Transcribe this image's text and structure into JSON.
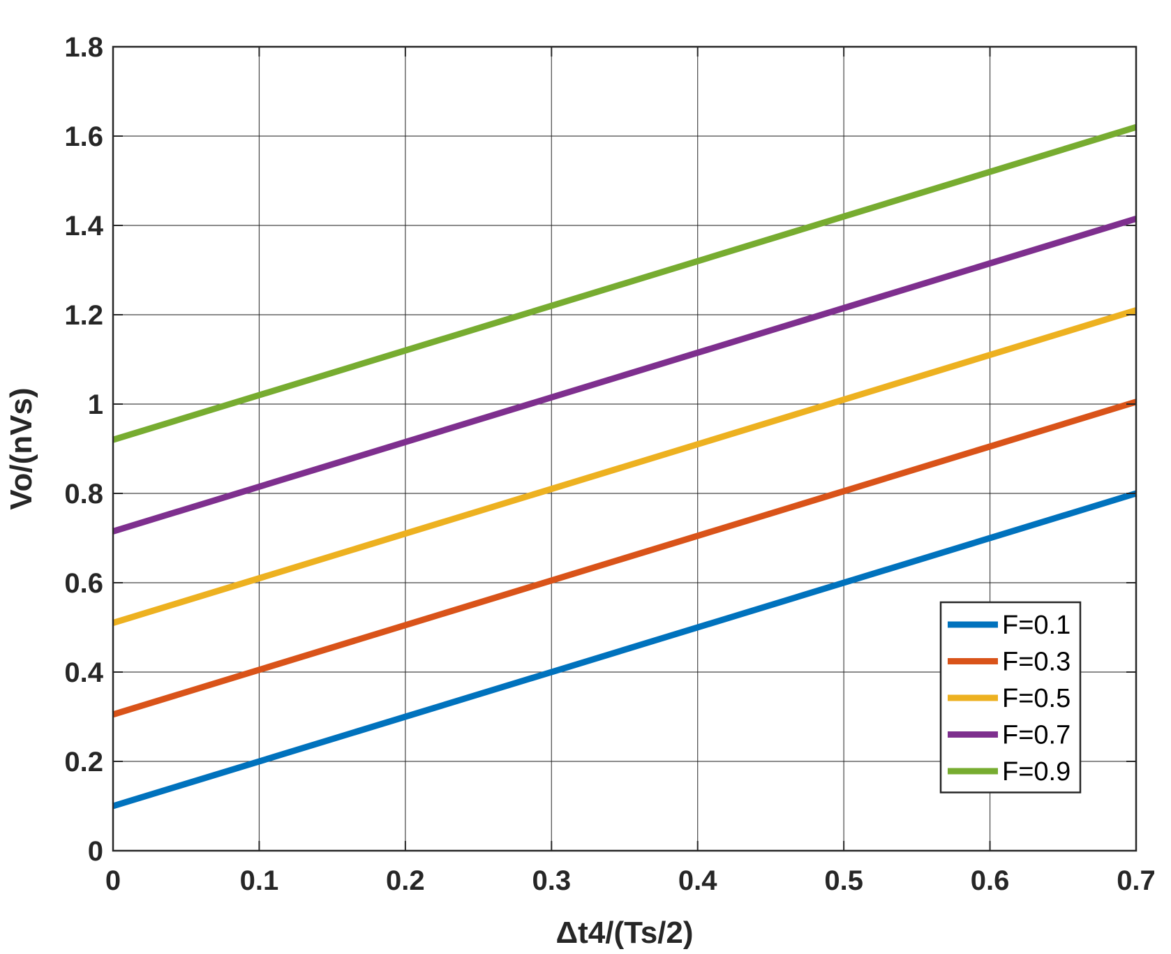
{
  "chart_data": {
    "type": "line",
    "title": "",
    "xlabel": "Δt4/(Ts/2)",
    "ylabel": "Vo/(nVs)",
    "xlim": [
      0,
      0.7
    ],
    "ylim": [
      0,
      1.8
    ],
    "xticks": [
      "0",
      "0.1",
      "0.2",
      "0.3",
      "0.4",
      "0.5",
      "0.6",
      "0.7"
    ],
    "yticks": [
      "0",
      "0.2",
      "0.4",
      "0.6",
      "0.8",
      "1",
      "1.2",
      "1.4",
      "1.6",
      "1.8"
    ],
    "grid": true,
    "legend_position": "lower-right",
    "series": [
      {
        "name": "F=0.1",
        "color": "#0072BD",
        "x": [
          0,
          0.7
        ],
        "y": [
          0.1,
          0.8
        ]
      },
      {
        "name": "F=0.3",
        "color": "#D95319",
        "x": [
          0,
          0.7
        ],
        "y": [
          0.305,
          1.005
        ]
      },
      {
        "name": "F=0.5",
        "color": "#EDB120",
        "x": [
          0,
          0.7
        ],
        "y": [
          0.51,
          1.21
        ]
      },
      {
        "name": "F=0.7",
        "color": "#7E2F8E",
        "x": [
          0,
          0.7
        ],
        "y": [
          0.715,
          1.415
        ]
      },
      {
        "name": "F=0.9",
        "color": "#77AC30",
        "x": [
          0,
          0.7
        ],
        "y": [
          0.92,
          1.62
        ]
      }
    ]
  }
}
